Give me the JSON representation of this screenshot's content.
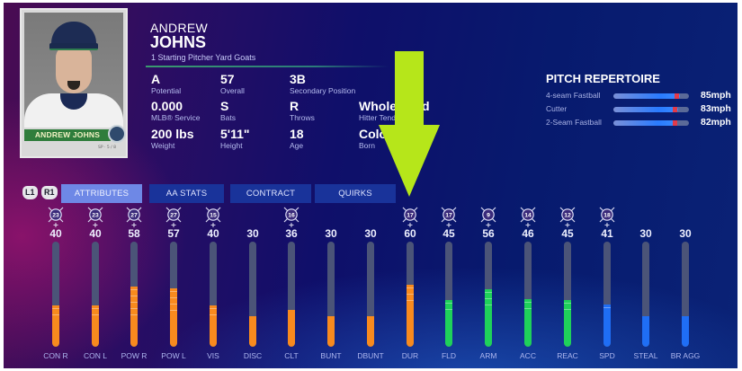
{
  "player": {
    "first_name": "ANDREW",
    "last_name": "JOHNS",
    "subline": "1 Starting Pitcher  Yard Goats",
    "card": {
      "nameplate": "ANDREW JOHNS",
      "sub": "SP · 5 / 8"
    }
  },
  "stats": [
    {
      "value": "A",
      "label": "Potential"
    },
    {
      "value": "57",
      "label": "Overall"
    },
    {
      "value": "3B",
      "label": "Secondary Position"
    },
    {
      "value": "0.000",
      "label": "MLB® Service"
    },
    {
      "value": "S",
      "label": "Bats"
    },
    {
      "value": "R",
      "label": "Throws"
    },
    {
      "value": "Whole Field",
      "label": "Hitter Tendency"
    },
    {
      "value": "200 lbs",
      "label": "Weight"
    },
    {
      "value": "5'11\"",
      "label": "Height"
    },
    {
      "value": "18",
      "label": "Age"
    },
    {
      "value": "Colo",
      "label": "Born"
    }
  ],
  "pitch_repertoire": {
    "title": "PITCH REPERTOIRE",
    "pitches": [
      {
        "name": "4-seam Fastball",
        "speed": "85mph",
        "fill_pct": 88
      },
      {
        "name": "Cutter",
        "speed": "83mph",
        "fill_pct": 86
      },
      {
        "name": "2-Seam Fastball",
        "speed": "82mph",
        "fill_pct": 85
      }
    ]
  },
  "tabs": {
    "hint_left": "L1",
    "hint_right": "R1",
    "items": [
      {
        "label": "ATTRIBUTES",
        "active": true
      },
      {
        "label": "AA STATS",
        "active": false
      },
      {
        "label": "CONTRACT",
        "active": false
      },
      {
        "label": "QUIRKS",
        "active": false
      }
    ]
  },
  "overlay": {
    "arrow_color": "#b6e61a"
  },
  "colors": {
    "hitting": "#f88a1e",
    "fielding": "#1fd15a",
    "running": "#1f6ef5",
    "bar_track": "#4b5478"
  },
  "attributes": [
    {
      "label": "CON R",
      "value": "40",
      "badge": "23",
      "group": "hitting",
      "base": 30
    },
    {
      "label": "CON L",
      "value": "40",
      "badge": "23",
      "group": "hitting",
      "base": 30
    },
    {
      "label": "POW R",
      "value": "58",
      "badge": "27",
      "group": "hitting",
      "base": 30
    },
    {
      "label": "POW L",
      "value": "57",
      "badge": "27",
      "group": "hitting",
      "base": 30
    },
    {
      "label": "VIS",
      "value": "40",
      "badge": "15",
      "group": "hitting",
      "base": 30
    },
    {
      "label": "DISC",
      "value": "30",
      "badge": "",
      "group": "hitting",
      "base": 30
    },
    {
      "label": "CLT",
      "value": "36",
      "badge": "16",
      "group": "hitting",
      "base": 36
    },
    {
      "label": "BUNT",
      "value": "30",
      "badge": "",
      "group": "hitting",
      "base": 30
    },
    {
      "label": "DBUNT",
      "value": "30",
      "badge": "",
      "group": "hitting",
      "base": 30
    },
    {
      "label": "DUR",
      "value": "60",
      "badge": "17",
      "group": "hitting",
      "base": 40
    },
    {
      "label": "FLD",
      "value": "45",
      "badge": "17",
      "group": "fielding",
      "base": 35
    },
    {
      "label": "ARM",
      "value": "56",
      "badge": "9",
      "group": "fielding",
      "base": 40
    },
    {
      "label": "ACC",
      "value": "46",
      "badge": "14",
      "group": "fielding",
      "base": 36
    },
    {
      "label": "REAC",
      "value": "45",
      "badge": "12",
      "group": "fielding",
      "base": 35
    },
    {
      "label": "SPD",
      "value": "41",
      "badge": "18",
      "group": "running",
      "base": 36
    },
    {
      "label": "STEAL",
      "value": "30",
      "badge": "",
      "group": "running",
      "base": 30
    },
    {
      "label": "BR AGG",
      "value": "30",
      "badge": "",
      "group": "running",
      "base": 30
    }
  ]
}
